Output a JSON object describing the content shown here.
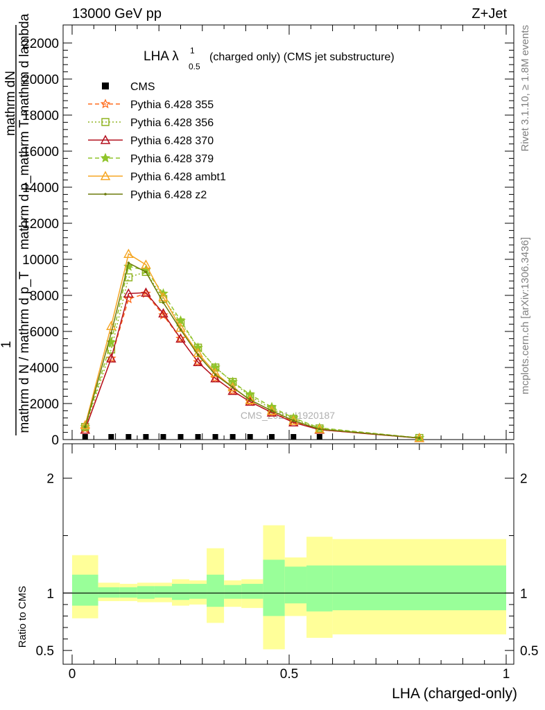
{
  "header": {
    "left": "13000 GeV pp",
    "right": "Z+Jet"
  },
  "side": {
    "rivet": "Rivet 3.1.10, ≥ 1.8M events",
    "mcplots": "mcplots.cern.ch [arXiv:1306.3436]"
  },
  "chart_data": {
    "type": "line",
    "title_main": "LHA λ",
    "title_sup": "1",
    "title_sub": "0.5",
    "title_rest": "(charged only) (CMS jet substructure)",
    "ylabel_lines": [
      "mathrm dN",
      "mathrm d p_mathrm T mathrm d lambda",
      "1",
      "mathrm d N / mathrm d p_T"
    ],
    "xlabel": "LHA (charged-only)",
    "ratio_ylabel": "Ratio to CMS",
    "watermark": "CMS_2021_I1920187",
    "xlim": [
      0,
      1
    ],
    "ylim_main": [
      0,
      23000
    ],
    "ylim_ratio": [
      0.38,
      2.3
    ],
    "main_yticks": [
      0,
      2000,
      4000,
      6000,
      8000,
      10000,
      12000,
      14000,
      16000,
      18000,
      20000,
      22000
    ],
    "main_ytick_labels": [
      "0",
      "2000",
      "4000",
      "6000",
      "8000",
      "10000",
      "12000",
      "14000",
      "16000",
      "18000",
      "20000",
      "22000"
    ],
    "ratio_yticks": [
      0.5,
      1,
      2
    ],
    "ratio_ytick_labels": [
      "0.5",
      "1",
      "2"
    ],
    "xticks": [
      0,
      0.5,
      1
    ],
    "xtick_labels": [
      "0",
      "0.5",
      "1"
    ],
    "x": [
      0.03,
      0.09,
      0.13,
      0.17,
      0.21,
      0.25,
      0.29,
      0.33,
      0.37,
      0.41,
      0.46,
      0.51,
      0.57,
      0.8
    ],
    "cms": {
      "name": "CMS",
      "values": [
        20,
        20,
        20,
        20,
        20,
        20,
        20,
        20,
        20,
        20,
        20,
        20,
        20,
        null
      ]
    },
    "series": [
      {
        "name": "Pythia 6.428 355",
        "color": "#ff6d1f",
        "dash": "6,4",
        "marker": "star-open",
        "values": [
          600,
          4500,
          7800,
          8100,
          6900,
          5600,
          4300,
          3400,
          2700,
          2100,
          1500,
          1000,
          550,
          90
        ]
      },
      {
        "name": "Pythia 6.428 356",
        "color": "#8fb320",
        "dash": "2,3",
        "marker": "square-open",
        "values": [
          700,
          5000,
          9000,
          9300,
          7800,
          6500,
          5100,
          4000,
          3200,
          2400,
          1700,
          1150,
          620,
          90
        ]
      },
      {
        "name": "Pythia 6.428 370",
        "color": "#b3101f",
        "dash": "",
        "marker": "triangle-open",
        "values": [
          550,
          4500,
          8100,
          8150,
          7000,
          5600,
          4300,
          3400,
          2700,
          2100,
          1500,
          950,
          550,
          80
        ]
      },
      {
        "name": "Pythia 6.428 379",
        "color": "#8fc42a",
        "dash": "6,4",
        "marker": "star-fill",
        "values": [
          700,
          5400,
          9600,
          9400,
          8100,
          6600,
          5100,
          4000,
          3200,
          2500,
          1800,
          1200,
          650,
          95
        ]
      },
      {
        "name": "Pythia 6.428 ambt1",
        "color": "#f5a623",
        "dash": "",
        "marker": "triangle-open",
        "values": [
          800,
          6300,
          10300,
          9700,
          7900,
          6200,
          4800,
          3700,
          2900,
          2200,
          1600,
          1050,
          580,
          85
        ]
      },
      {
        "name": "Pythia 6.428 z2",
        "color": "#6b7a0a",
        "dash": "",
        "marker": "dot",
        "values": [
          700,
          5900,
          9800,
          9300,
          7600,
          6100,
          4700,
          3600,
          2900,
          2200,
          1600,
          1050,
          580,
          85
        ]
      }
    ],
    "ratio_bands": {
      "edges": [
        0.0,
        0.06,
        0.11,
        0.15,
        0.19,
        0.23,
        0.27,
        0.31,
        0.35,
        0.39,
        0.44,
        0.49,
        0.54,
        0.6,
        1.0
      ],
      "inner_color": "#99ff99",
      "outer_color": "#ffff99",
      "inner_lo": [
        0.89,
        0.96,
        0.96,
        0.95,
        0.96,
        0.94,
        0.95,
        0.88,
        0.95,
        0.95,
        0.8,
        0.91,
        0.84,
        0.85
      ],
      "inner_hi": [
        1.16,
        1.05,
        1.05,
        1.06,
        1.06,
        1.08,
        1.08,
        1.16,
        1.07,
        1.08,
        1.29,
        1.23,
        1.24,
        1.24
      ],
      "outer_lo": [
        0.78,
        0.93,
        0.93,
        0.92,
        0.92,
        0.89,
        0.9,
        0.74,
        0.88,
        0.87,
        0.51,
        0.8,
        0.61,
        0.64
      ],
      "outer_hi": [
        1.33,
        1.09,
        1.08,
        1.09,
        1.09,
        1.12,
        1.11,
        1.39,
        1.11,
        1.12,
        1.59,
        1.31,
        1.49,
        1.47
      ]
    }
  }
}
